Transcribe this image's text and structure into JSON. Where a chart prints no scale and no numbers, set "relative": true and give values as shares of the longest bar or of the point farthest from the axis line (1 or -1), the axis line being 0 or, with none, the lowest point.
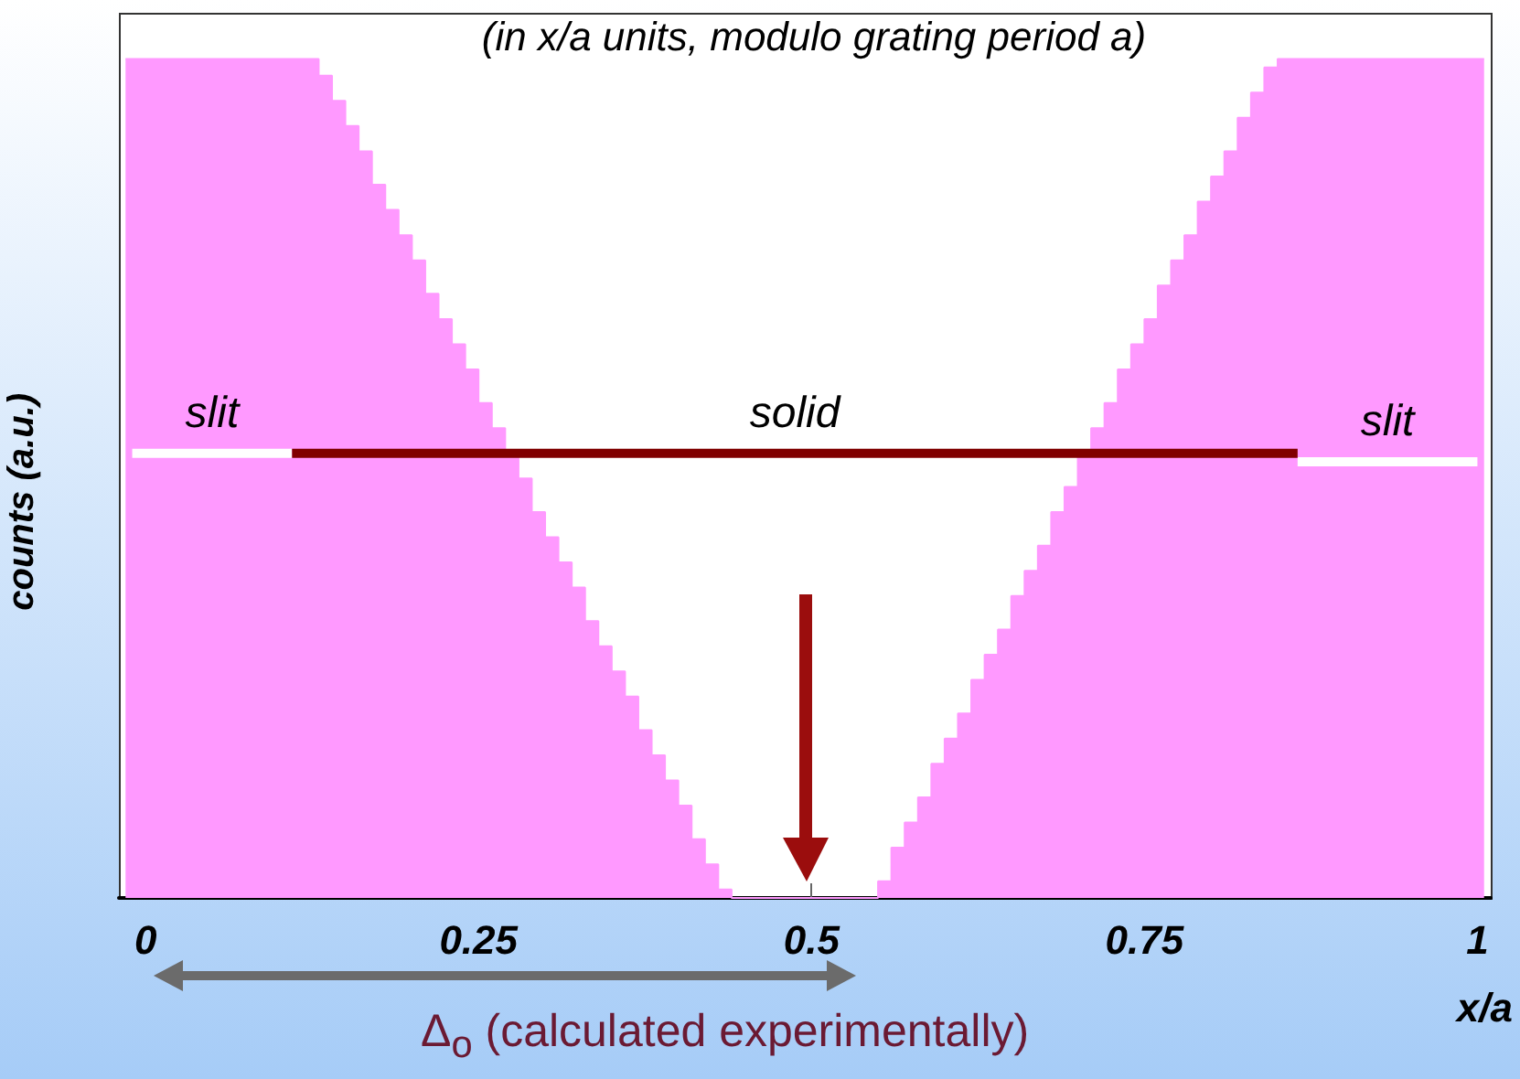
{
  "chart_data": {
    "type": "area",
    "subtitle": "(in x/a units, modulo grating period a)",
    "xlabel": "x/a",
    "ylabel": "counts (a.u.)",
    "relative": true,
    "color": "#ff99ff",
    "x": [
      -0.015,
      -0.005,
      0.005,
      0.015,
      0.025,
      0.035,
      0.045,
      0.055,
      0.065,
      0.075,
      0.085,
      0.095,
      0.105,
      0.115,
      0.125,
      0.135,
      0.145,
      0.155,
      0.165,
      0.175,
      0.185,
      0.195,
      0.205,
      0.215,
      0.225,
      0.235,
      0.245,
      0.255,
      0.265,
      0.275,
      0.285,
      0.295,
      0.305,
      0.315,
      0.325,
      0.335,
      0.345,
      0.355,
      0.365,
      0.375,
      0.385,
      0.395,
      0.405,
      0.415,
      0.425,
      0.435,
      0.445,
      0.455,
      0.465,
      0.475,
      0.485,
      0.495,
      0.505,
      0.515,
      0.525,
      0.535,
      0.545,
      0.555,
      0.565,
      0.575,
      0.585,
      0.595,
      0.605,
      0.615,
      0.625,
      0.635,
      0.645,
      0.655,
      0.665,
      0.675,
      0.685,
      0.695,
      0.705,
      0.715,
      0.725,
      0.735,
      0.745,
      0.755,
      0.765,
      0.775,
      0.785,
      0.795,
      0.805,
      0.815,
      0.825,
      0.835,
      0.845,
      0.855,
      0.865,
      0.875,
      0.885,
      0.895,
      0.905,
      0.915,
      0.925,
      0.935,
      0.945,
      0.955,
      0.965,
      0.975,
      0.985,
      0.995,
      1.005
    ],
    "values": [
      1,
      1,
      1,
      1,
      1,
      1,
      1,
      1,
      1,
      1,
      1,
      1,
      1,
      1,
      1,
      0.98,
      0.95,
      0.92,
      0.89,
      0.85,
      0.82,
      0.79,
      0.76,
      0.72,
      0.69,
      0.66,
      0.63,
      0.59,
      0.56,
      0.53,
      0.5,
      0.46,
      0.43,
      0.4,
      0.37,
      0.33,
      0.3,
      0.27,
      0.24,
      0.2,
      0.17,
      0.14,
      0.11,
      0.07,
      0.04,
      0.01,
      0,
      0,
      0,
      0,
      0,
      0,
      0,
      0,
      0,
      0,
      0,
      0.02,
      0.06,
      0.09,
      0.12,
      0.16,
      0.19,
      0.22,
      0.26,
      0.29,
      0.32,
      0.36,
      0.39,
      0.42,
      0.46,
      0.49,
      0.53,
      0.56,
      0.59,
      0.63,
      0.66,
      0.69,
      0.73,
      0.76,
      0.79,
      0.83,
      0.86,
      0.89,
      0.93,
      0.96,
      0.99,
      1,
      1,
      1,
      1,
      1,
      1,
      1,
      1,
      1,
      1,
      1,
      1,
      1,
      1,
      1,
      1
    ],
    "series": [
      {
        "type": "line",
        "name": "slit",
        "color": "#ffffff",
        "x": [
          -0.01,
          0.11,
          0.49,
          0.865,
          1.0
        ],
        "values": [
          0.53,
          0.53,
          null,
          0.52,
          0.52
        ]
      },
      {
        "type": "line",
        "name": "solid",
        "color": "#800000",
        "x": [
          0.11,
          0.865
        ],
        "values": [
          0.53,
          0.53
        ]
      }
    ],
    "xlim": [
      -0.02,
      1.01
    ],
    "xticks": [
      0,
      0.25,
      0.5,
      0.75,
      1
    ],
    "grid": false,
    "annotations": [
      "Δ$_{o}$ (calculated experimentally)"
    ]
  }
}
